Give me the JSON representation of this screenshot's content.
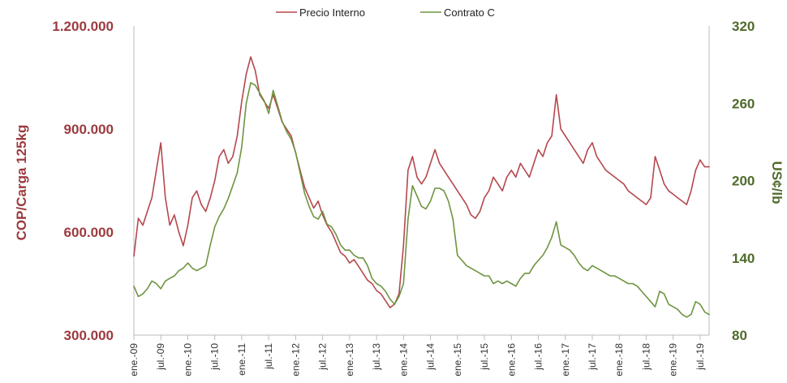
{
  "chart_data": {
    "type": "line",
    "legend": {
      "position": "top-center",
      "items": [
        {
          "name": "Precio Interno",
          "color": "#b5474d"
        },
        {
          "name": "Contrato C",
          "color": "#6e9440"
        }
      ]
    },
    "y_left": {
      "label": "COP/Carga 125kg",
      "range": [
        300000,
        1200000
      ],
      "ticks": [
        "300.000",
        "600.000",
        "900.000",
        "1.200.000"
      ],
      "tick_values": [
        300000,
        600000,
        900000,
        1200000
      ],
      "color": "#9c3a3f"
    },
    "y_right": {
      "label": "US¢/lb",
      "range": [
        80,
        320
      ],
      "ticks": [
        "80",
        "140",
        "200",
        "260",
        "320"
      ],
      "tick_values": [
        80,
        140,
        200,
        260,
        320
      ],
      "color": "#4f6b2c"
    },
    "x": {
      "range": [
        "2009-01",
        "2019-09"
      ],
      "tick_labels": [
        "ene.-09",
        "jul.-09",
        "ene.-10",
        "jul.-10",
        "ene.-11",
        "jul.-11",
        "ene.-12",
        "jul.-12",
        "ene.-13",
        "jul.-13",
        "ene.-14",
        "jul.-14",
        "ene.-15",
        "jul.-15",
        "ene.-16",
        "jul.-16",
        "ene.-17",
        "jul.-17",
        "ene.-18",
        "jul.-18",
        "ene.-19",
        "jul.-19"
      ],
      "tick_dates": [
        "2009-01",
        "2009-07",
        "2010-01",
        "2010-07",
        "2011-01",
        "2011-07",
        "2012-01",
        "2012-07",
        "2013-01",
        "2013-07",
        "2014-01",
        "2014-07",
        "2015-01",
        "2015-07",
        "2016-01",
        "2016-07",
        "2017-01",
        "2017-07",
        "2018-01",
        "2018-07",
        "2019-01",
        "2019-07"
      ]
    },
    "series": [
      {
        "name": "Precio Interno",
        "axis": "left",
        "color": "#b5474d",
        "points": [
          [
            "2009-01",
            530000
          ],
          [
            "2009-02",
            640000
          ],
          [
            "2009-03",
            620000
          ],
          [
            "2009-04",
            660000
          ],
          [
            "2009-05",
            700000
          ],
          [
            "2009-06",
            780000
          ],
          [
            "2009-07",
            860000
          ],
          [
            "2009-08",
            700000
          ],
          [
            "2009-09",
            620000
          ],
          [
            "2009-10",
            650000
          ],
          [
            "2009-11",
            600000
          ],
          [
            "2009-12",
            560000
          ],
          [
            "2010-01",
            620000
          ],
          [
            "2010-02",
            700000
          ],
          [
            "2010-03",
            720000
          ],
          [
            "2010-04",
            680000
          ],
          [
            "2010-05",
            660000
          ],
          [
            "2010-06",
            700000
          ],
          [
            "2010-07",
            750000
          ],
          [
            "2010-08",
            820000
          ],
          [
            "2010-09",
            840000
          ],
          [
            "2010-10",
            800000
          ],
          [
            "2010-11",
            820000
          ],
          [
            "2010-12",
            880000
          ],
          [
            "2011-01",
            980000
          ],
          [
            "2011-02",
            1060000
          ],
          [
            "2011-03",
            1110000
          ],
          [
            "2011-04",
            1070000
          ],
          [
            "2011-05",
            1000000
          ],
          [
            "2011-06",
            980000
          ],
          [
            "2011-07",
            960000
          ],
          [
            "2011-08",
            1000000
          ],
          [
            "2011-09",
            960000
          ],
          [
            "2011-10",
            920000
          ],
          [
            "2011-11",
            900000
          ],
          [
            "2011-12",
            880000
          ],
          [
            "2012-01",
            830000
          ],
          [
            "2012-02",
            780000
          ],
          [
            "2012-03",
            730000
          ],
          [
            "2012-04",
            700000
          ],
          [
            "2012-05",
            670000
          ],
          [
            "2012-06",
            690000
          ],
          [
            "2012-07",
            650000
          ],
          [
            "2012-08",
            620000
          ],
          [
            "2012-09",
            600000
          ],
          [
            "2012-10",
            570000
          ],
          [
            "2012-11",
            540000
          ],
          [
            "2012-12",
            530000
          ],
          [
            "2013-01",
            510000
          ],
          [
            "2013-02",
            520000
          ],
          [
            "2013-03",
            500000
          ],
          [
            "2013-04",
            480000
          ],
          [
            "2013-05",
            460000
          ],
          [
            "2013-06",
            450000
          ],
          [
            "2013-07",
            430000
          ],
          [
            "2013-08",
            420000
          ],
          [
            "2013-09",
            400000
          ],
          [
            "2013-10",
            380000
          ],
          [
            "2013-11",
            390000
          ],
          [
            "2013-12",
            420000
          ],
          [
            "2014-01",
            560000
          ],
          [
            "2014-02",
            780000
          ],
          [
            "2014-03",
            820000
          ],
          [
            "2014-04",
            760000
          ],
          [
            "2014-05",
            740000
          ],
          [
            "2014-06",
            760000
          ],
          [
            "2014-07",
            800000
          ],
          [
            "2014-08",
            840000
          ],
          [
            "2014-09",
            800000
          ],
          [
            "2014-10",
            780000
          ],
          [
            "2014-11",
            760000
          ],
          [
            "2014-12",
            740000
          ],
          [
            "2015-01",
            720000
          ],
          [
            "2015-02",
            700000
          ],
          [
            "2015-03",
            680000
          ],
          [
            "2015-04",
            650000
          ],
          [
            "2015-05",
            640000
          ],
          [
            "2015-06",
            660000
          ],
          [
            "2015-07",
            700000
          ],
          [
            "2015-08",
            720000
          ],
          [
            "2015-09",
            760000
          ],
          [
            "2015-10",
            740000
          ],
          [
            "2015-11",
            720000
          ],
          [
            "2015-12",
            760000
          ],
          [
            "2016-01",
            780000
          ],
          [
            "2016-02",
            760000
          ],
          [
            "2016-03",
            800000
          ],
          [
            "2016-04",
            780000
          ],
          [
            "2016-05",
            760000
          ],
          [
            "2016-06",
            800000
          ],
          [
            "2016-07",
            840000
          ],
          [
            "2016-08",
            820000
          ],
          [
            "2016-09",
            860000
          ],
          [
            "2016-10",
            880000
          ],
          [
            "2016-11",
            1000000
          ],
          [
            "2016-12",
            900000
          ],
          [
            "2017-01",
            880000
          ],
          [
            "2017-02",
            860000
          ],
          [
            "2017-03",
            840000
          ],
          [
            "2017-04",
            820000
          ],
          [
            "2017-05",
            800000
          ],
          [
            "2017-06",
            840000
          ],
          [
            "2017-07",
            860000
          ],
          [
            "2017-08",
            820000
          ],
          [
            "2017-09",
            800000
          ],
          [
            "2017-10",
            780000
          ],
          [
            "2017-11",
            770000
          ],
          [
            "2017-12",
            760000
          ],
          [
            "2018-01",
            750000
          ],
          [
            "2018-02",
            740000
          ],
          [
            "2018-03",
            720000
          ],
          [
            "2018-04",
            710000
          ],
          [
            "2018-05",
            700000
          ],
          [
            "2018-06",
            690000
          ],
          [
            "2018-07",
            680000
          ],
          [
            "2018-08",
            700000
          ],
          [
            "2018-09",
            820000
          ],
          [
            "2018-10",
            780000
          ],
          [
            "2018-11",
            740000
          ],
          [
            "2018-12",
            720000
          ],
          [
            "2019-01",
            710000
          ],
          [
            "2019-02",
            700000
          ],
          [
            "2019-03",
            690000
          ],
          [
            "2019-04",
            680000
          ],
          [
            "2019-05",
            720000
          ],
          [
            "2019-06",
            780000
          ],
          [
            "2019-07",
            810000
          ],
          [
            "2019-08",
            790000
          ],
          [
            "2019-09",
            790000
          ]
        ]
      },
      {
        "name": "Contrato C",
        "axis": "right",
        "color": "#6e9440",
        "points": [
          [
            "2009-01",
            118
          ],
          [
            "2009-02",
            110
          ],
          [
            "2009-03",
            112
          ],
          [
            "2009-04",
            116
          ],
          [
            "2009-05",
            122
          ],
          [
            "2009-06",
            120
          ],
          [
            "2009-07",
            116
          ],
          [
            "2009-08",
            122
          ],
          [
            "2009-09",
            124
          ],
          [
            "2009-10",
            126
          ],
          [
            "2009-11",
            130
          ],
          [
            "2009-12",
            132
          ],
          [
            "2010-01",
            136
          ],
          [
            "2010-02",
            132
          ],
          [
            "2010-03",
            130
          ],
          [
            "2010-04",
            132
          ],
          [
            "2010-05",
            134
          ],
          [
            "2010-06",
            150
          ],
          [
            "2010-07",
            164
          ],
          [
            "2010-08",
            172
          ],
          [
            "2010-09",
            178
          ],
          [
            "2010-10",
            186
          ],
          [
            "2010-11",
            196
          ],
          [
            "2010-12",
            206
          ],
          [
            "2011-01",
            226
          ],
          [
            "2011-02",
            260
          ],
          [
            "2011-03",
            276
          ],
          [
            "2011-04",
            274
          ],
          [
            "2011-05",
            268
          ],
          [
            "2011-06",
            262
          ],
          [
            "2011-07",
            252
          ],
          [
            "2011-08",
            270
          ],
          [
            "2011-09",
            258
          ],
          [
            "2011-10",
            246
          ],
          [
            "2011-11",
            238
          ],
          [
            "2011-12",
            232
          ],
          [
            "2012-01",
            222
          ],
          [
            "2012-02",
            206
          ],
          [
            "2012-03",
            190
          ],
          [
            "2012-04",
            180
          ],
          [
            "2012-05",
            172
          ],
          [
            "2012-06",
            170
          ],
          [
            "2012-07",
            176
          ],
          [
            "2012-08",
            166
          ],
          [
            "2012-09",
            164
          ],
          [
            "2012-10",
            158
          ],
          [
            "2012-11",
            150
          ],
          [
            "2012-12",
            146
          ],
          [
            "2013-01",
            146
          ],
          [
            "2013-02",
            142
          ],
          [
            "2013-03",
            140
          ],
          [
            "2013-04",
            140
          ],
          [
            "2013-05",
            134
          ],
          [
            "2013-06",
            124
          ],
          [
            "2013-07",
            120
          ],
          [
            "2013-08",
            118
          ],
          [
            "2013-09",
            114
          ],
          [
            "2013-10",
            108
          ],
          [
            "2013-11",
            104
          ],
          [
            "2013-12",
            110
          ],
          [
            "2014-01",
            120
          ],
          [
            "2014-02",
            170
          ],
          [
            "2014-03",
            196
          ],
          [
            "2014-04",
            188
          ],
          [
            "2014-05",
            180
          ],
          [
            "2014-06",
            178
          ],
          [
            "2014-07",
            184
          ],
          [
            "2014-08",
            194
          ],
          [
            "2014-09",
            194
          ],
          [
            "2014-10",
            192
          ],
          [
            "2014-11",
            184
          ],
          [
            "2014-12",
            170
          ],
          [
            "2015-01",
            142
          ],
          [
            "2015-02",
            138
          ],
          [
            "2015-03",
            134
          ],
          [
            "2015-04",
            132
          ],
          [
            "2015-05",
            130
          ],
          [
            "2015-06",
            128
          ],
          [
            "2015-07",
            126
          ],
          [
            "2015-08",
            126
          ],
          [
            "2015-09",
            120
          ],
          [
            "2015-10",
            122
          ],
          [
            "2015-11",
            120
          ],
          [
            "2015-12",
            122
          ],
          [
            "2016-01",
            120
          ],
          [
            "2016-02",
            118
          ],
          [
            "2016-03",
            124
          ],
          [
            "2016-04",
            128
          ],
          [
            "2016-05",
            128
          ],
          [
            "2016-06",
            134
          ],
          [
            "2016-07",
            138
          ],
          [
            "2016-08",
            142
          ],
          [
            "2016-09",
            148
          ],
          [
            "2016-10",
            156
          ],
          [
            "2016-11",
            168
          ],
          [
            "2016-12",
            150
          ],
          [
            "2017-01",
            148
          ],
          [
            "2017-02",
            146
          ],
          [
            "2017-03",
            142
          ],
          [
            "2017-04",
            136
          ],
          [
            "2017-05",
            132
          ],
          [
            "2017-06",
            130
          ],
          [
            "2017-07",
            134
          ],
          [
            "2017-08",
            132
          ],
          [
            "2017-09",
            130
          ],
          [
            "2017-10",
            128
          ],
          [
            "2017-11",
            126
          ],
          [
            "2017-12",
            126
          ],
          [
            "2018-01",
            124
          ],
          [
            "2018-02",
            122
          ],
          [
            "2018-03",
            120
          ],
          [
            "2018-04",
            120
          ],
          [
            "2018-05",
            118
          ],
          [
            "2018-06",
            114
          ],
          [
            "2018-07",
            110
          ],
          [
            "2018-08",
            106
          ],
          [
            "2018-09",
            102
          ],
          [
            "2018-10",
            114
          ],
          [
            "2018-11",
            112
          ],
          [
            "2018-12",
            104
          ],
          [
            "2019-01",
            102
          ],
          [
            "2019-02",
            100
          ],
          [
            "2019-03",
            96
          ],
          [
            "2019-04",
            94
          ],
          [
            "2019-05",
            96
          ],
          [
            "2019-06",
            106
          ],
          [
            "2019-07",
            104
          ],
          [
            "2019-08",
            98
          ],
          [
            "2019-09",
            96
          ]
        ]
      }
    ]
  }
}
